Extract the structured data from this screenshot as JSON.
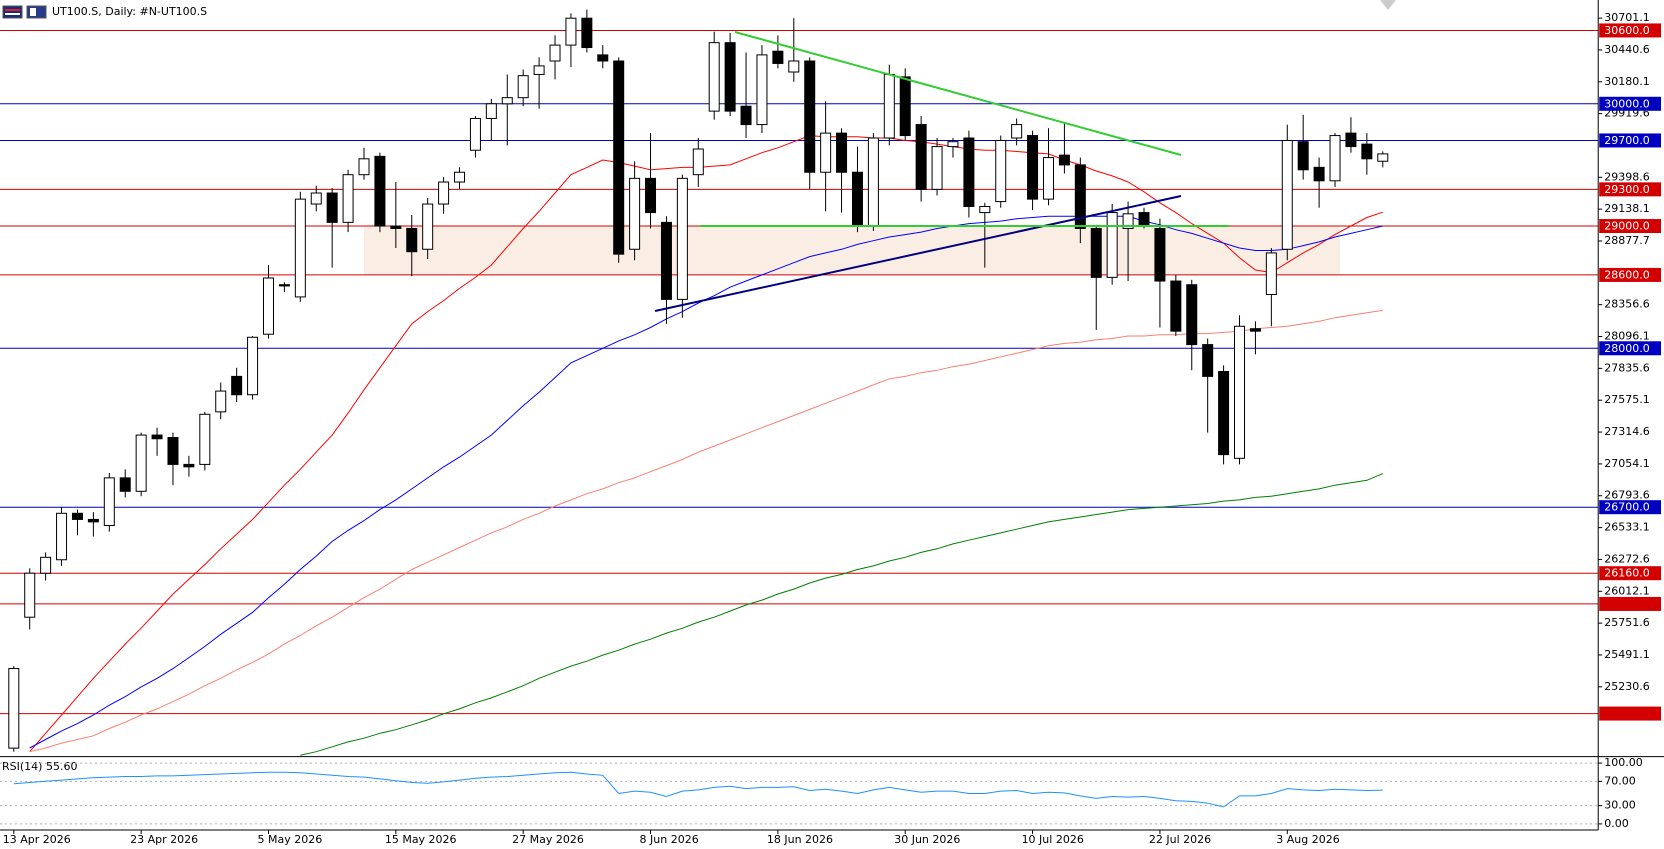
{
  "header": {
    "title": "UT100.S, Daily:  #N-UT100.S"
  },
  "chart_data": [
    {
      "type": "candlestick",
      "categories": [
        "13 Apr 2026",
        null,
        null,
        null,
        null,
        null,
        null,
        null,
        "23 Apr 2026",
        null,
        null,
        null,
        null,
        null,
        null,
        null,
        "5 May 2026",
        null,
        null,
        null,
        null,
        null,
        null,
        null,
        "15 May 2026",
        null,
        null,
        null,
        null,
        null,
        null,
        null,
        "27 May 2026",
        null,
        null,
        null,
        null,
        null,
        null,
        null,
        "8 Jun 2026",
        null,
        null,
        null,
        null,
        null,
        null,
        null,
        "18 Jun 2026",
        null,
        null,
        null,
        null,
        null,
        null,
        null,
        "30 Jun 2026",
        null,
        null,
        null,
        null,
        null,
        null,
        null,
        "10 Jul 2026",
        null,
        null,
        null,
        null,
        null,
        null,
        null,
        "22 Jul 2026",
        null,
        null,
        null,
        null,
        null,
        null,
        null,
        "3 Aug 2026",
        null,
        null,
        null,
        null,
        null,
        null
      ],
      "open": [
        24729,
        25800,
        26160,
        26270,
        26650,
        26600,
        26550,
        26940,
        26830,
        27290,
        27270,
        27050,
        27050,
        27480,
        27770,
        27620,
        28115,
        28520,
        28420,
        29180,
        29270,
        29030,
        29420,
        29570,
        29000,
        28980,
        28810,
        29180,
        29360,
        29620,
        29880,
        30000,
        30050,
        30240,
        30350,
        30480,
        30700,
        30400,
        30350,
        28810,
        29390,
        29030,
        28400,
        29420,
        29940,
        30500,
        29980,
        29830,
        30430,
        30260,
        30350,
        29440,
        29760,
        29440,
        29000,
        29720,
        30220,
        29830,
        29300,
        29650,
        29720,
        29110,
        29200,
        29720,
        29740,
        29220,
        29580,
        29500,
        28980,
        28580,
        28980,
        29110,
        28980,
        28550,
        28520,
        28030,
        27810,
        27100,
        28160,
        28440,
        28810,
        29690,
        29480,
        29370,
        29760,
        29670,
        29530
      ],
      "high": [
        25400,
        26200,
        26330,
        26700,
        26680,
        26660,
        26980,
        27010,
        27310,
        27350,
        27310,
        27120,
        27480,
        27720,
        27840,
        28100,
        28680,
        28540,
        29280,
        29330,
        29310,
        29460,
        29640,
        29600,
        29360,
        29090,
        29230,
        29400,
        29480,
        29900,
        30040,
        30240,
        30280,
        30380,
        30560,
        30740,
        30770,
        30480,
        30380,
        29530,
        29760,
        29080,
        29420,
        29720,
        30590,
        30580,
        30420,
        30480,
        30560,
        30700,
        30380,
        30020,
        29800,
        29650,
        29760,
        30320,
        30290,
        29900,
        29720,
        29720,
        29780,
        29190,
        29740,
        29880,
        29780,
        29800,
        29840,
        29560,
        29010,
        29180,
        29200,
        29150,
        29060,
        28600,
        28560,
        28080,
        27860,
        28270,
        28220,
        28820,
        29830,
        29910,
        29560,
        29760,
        29890,
        29760,
        29610
      ],
      "low": [
        24700,
        25700,
        26100,
        26220,
        26470,
        26460,
        26500,
        26780,
        26790,
        27120,
        26880,
        26950,
        27000,
        27420,
        27560,
        27580,
        28080,
        28460,
        28380,
        29120,
        28660,
        28950,
        29380,
        28950,
        28820,
        28590,
        28730,
        29100,
        29300,
        29560,
        29700,
        29660,
        29980,
        29960,
        30200,
        30300,
        30420,
        30290,
        28700,
        28720,
        28980,
        28200,
        28250,
        29320,
        29870,
        29900,
        29720,
        29760,
        30290,
        30180,
        29300,
        29120,
        29110,
        28950,
        28960,
        29660,
        29700,
        29200,
        29250,
        29560,
        29070,
        28660,
        29150,
        29660,
        29130,
        29170,
        29430,
        28860,
        28150,
        28520,
        28550,
        28980,
        28170,
        28100,
        27820,
        27310,
        27050,
        27050,
        27950,
        28180,
        28720,
        29380,
        29150,
        29320,
        29600,
        29420,
        29480
      ],
      "close": [
        25380,
        26160,
        26290,
        26650,
        26600,
        26580,
        26940,
        26830,
        27290,
        27260,
        27050,
        27030,
        27460,
        27650,
        27620,
        28090,
        28575,
        28510,
        29220,
        29270,
        29030,
        29420,
        29550,
        29000,
        28980,
        28790,
        29180,
        29360,
        29440,
        29880,
        30000,
        30050,
        30230,
        30310,
        30480,
        30700,
        30460,
        30350,
        28770,
        29390,
        29110,
        28400,
        29390,
        29630,
        30500,
        29940,
        29830,
        30400,
        30330,
        30350,
        29440,
        29760,
        29440,
        29000,
        29720,
        30240,
        29740,
        29300,
        29650,
        29690,
        29160,
        29160,
        29700,
        29830,
        29220,
        29560,
        29500,
        28980,
        28580,
        29110,
        29100,
        29010,
        28550,
        28140,
        28030,
        27770,
        27130,
        28180,
        28140,
        28780,
        29700,
        29460,
        29370,
        29740,
        29650,
        29550,
        29590
      ],
      "up_color": "#ffffff",
      "down_color": "#000000",
      "series": [
        {
          "color": "#ff0000",
          "values": [
            null,
            24700,
            24850,
            25000,
            25150,
            25300,
            25440,
            25580,
            25710,
            25850,
            25990,
            26110,
            26230,
            26360,
            26480,
            26600,
            26740,
            26880,
            27010,
            27150,
            27290,
            27470,
            27660,
            27840,
            28020,
            28200,
            28300,
            28390,
            28490,
            28580,
            28680,
            28830,
            28980,
            29120,
            29270,
            29420,
            29480,
            29540,
            29520,
            29490,
            29460,
            29470,
            29480,
            29480,
            29490,
            29500,
            29550,
            29600,
            29640,
            29690,
            29740,
            29730,
            29730,
            29730,
            29720,
            29720,
            29700,
            29690,
            29670,
            29650,
            29630,
            29620,
            29620,
            29610,
            29600,
            29590,
            29540,
            29500,
            29450,
            29410,
            29360,
            29280,
            29190,
            29110,
            29020,
            28940,
            28860,
            28740,
            28640,
            28620,
            28700,
            28780,
            28850,
            28930,
            29000,
            29070,
            29113
          ]
        },
        {
          "color": "#0000ff",
          "values": [
            null,
            24730,
            24800,
            24870,
            24930,
            25000,
            25080,
            25150,
            25230,
            25300,
            25380,
            25470,
            25560,
            25660,
            25750,
            25840,
            25960,
            26070,
            26190,
            26300,
            26420,
            26510,
            26590,
            26680,
            26760,
            26850,
            26940,
            27030,
            27110,
            27200,
            27290,
            27410,
            27530,
            27640,
            27760,
            27880,
            27940,
            28000,
            28060,
            28110,
            28170,
            28240,
            28300,
            28370,
            28430,
            28500,
            28550,
            28600,
            28650,
            28700,
            28750,
            28780,
            28810,
            28850,
            28880,
            28910,
            28930,
            28950,
            28980,
            29000,
            29020,
            29030,
            29040,
            29060,
            29070,
            29080,
            29080,
            29080,
            29080,
            29080,
            29080,
            29040,
            29010,
            28970,
            28940,
            28900,
            28860,
            28820,
            28800,
            28800,
            28810,
            28840,
            28870,
            28910,
            28940,
            28970,
            29000
          ]
        },
        {
          "color": "#fa8072",
          "values": [
            null,
            24700,
            24730,
            24770,
            24800,
            24830,
            24890,
            24940,
            25000,
            25050,
            25110,
            25170,
            25240,
            25300,
            25370,
            25430,
            25500,
            25580,
            25650,
            25730,
            25800,
            25880,
            25960,
            26030,
            26110,
            26190,
            26250,
            26310,
            26370,
            26430,
            26490,
            26540,
            26600,
            26650,
            26710,
            26760,
            26810,
            26850,
            26900,
            26940,
            26990,
            27040,
            27090,
            27150,
            27200,
            27250,
            27300,
            27350,
            27400,
            27450,
            27500,
            27550,
            27600,
            27650,
            27700,
            27750,
            27770,
            27800,
            27820,
            27850,
            27870,
            27900,
            27930,
            27960,
            27990,
            28020,
            28040,
            28050,
            28070,
            28080,
            28100,
            28100,
            28110,
            28110,
            28120,
            28120,
            28130,
            28140,
            28160,
            28170,
            28180,
            28200,
            28220,
            28250,
            28270,
            28290,
            28310
          ]
        },
        {
          "color": "#008000",
          "values": [
            null,
            null,
            null,
            null,
            null,
            null,
            null,
            null,
            null,
            null,
            null,
            null,
            null,
            null,
            null,
            null,
            null,
            null,
            24670,
            24700,
            24740,
            24780,
            24810,
            24850,
            24880,
            24920,
            24960,
            25010,
            25050,
            25100,
            25140,
            25190,
            25240,
            25300,
            25350,
            25400,
            25440,
            25490,
            25530,
            25580,
            25620,
            25670,
            25710,
            25760,
            25800,
            25850,
            25900,
            25940,
            25990,
            26030,
            26080,
            26120,
            26150,
            26190,
            26220,
            26260,
            26290,
            26330,
            26360,
            26400,
            26430,
            26460,
            26490,
            26520,
            26550,
            26580,
            26600,
            26620,
            26640,
            26660,
            26680,
            26690,
            26700,
            26710,
            26720,
            26730,
            26750,
            26760,
            26780,
            26790,
            26810,
            26830,
            26850,
            26880,
            26900,
            26920,
            26975
          ]
        }
      ],
      "ylim": [
        24668,
        30849
      ],
      "yticks": [
        30701.1,
        30440.6,
        30180.1,
        29919.6,
        29398.6,
        29138.1,
        28877.7,
        28356.6,
        28096.1,
        27835.6,
        27575.1,
        27314.6,
        27054.1,
        26793.6,
        26533.1,
        26272.6,
        26012.1,
        25751.6,
        25491.1,
        25230.6
      ],
      "hlines": [
        {
          "value": 30600,
          "label": "30600.0",
          "color": "#d40000"
        },
        {
          "value": 30000,
          "label": "30000.0",
          "color": "#0000c0"
        },
        {
          "value": 29700,
          "label": "29700.0",
          "color": "#0000c0"
        },
        {
          "value": 29300,
          "label": "29300.0",
          "color": "#d40000"
        },
        {
          "value": 29000,
          "label": "29000.0",
          "color": "#d40000"
        },
        {
          "value": 28600,
          "label": "28600.0",
          "color": "#d40000"
        },
        {
          "value": 28000,
          "label": "28000.0",
          "color": "#0000c0"
        },
        {
          "value": 26700,
          "label": "26700.0",
          "color": "#0000c0"
        },
        {
          "value": 26160,
          "label": "26160.0",
          "color": "#d40000"
        },
        {
          "value": 25908.6,
          "color": "#d40000"
        },
        {
          "value": 25011.8,
          "color": "#d40000"
        }
      ]
    },
    {
      "type": "line",
      "title": "RSI(14) 55.60",
      "color": "#1e90ff",
      "values": [
        66,
        68,
        70,
        72,
        74,
        76,
        77,
        78,
        78,
        79,
        79,
        80,
        81,
        82,
        83,
        84,
        85,
        85,
        84,
        82,
        80,
        78,
        77,
        74,
        71,
        68,
        67,
        69,
        72,
        75,
        77,
        78,
        80,
        82,
        84,
        85,
        82,
        80,
        50,
        54,
        52,
        45,
        54,
        56,
        60,
        62,
        58,
        60,
        60,
        61,
        55,
        57,
        54,
        50,
        56,
        60,
        56,
        52,
        54,
        54,
        50,
        50,
        54,
        55,
        50,
        52,
        51,
        46,
        42,
        45,
        44,
        45,
        42,
        38,
        37,
        34,
        28,
        46,
        46,
        50,
        58,
        56,
        55,
        57,
        56,
        55,
        55.6
      ],
      "ylim": [
        -10,
        110
      ],
      "yticks": [
        {
          "value": 100,
          "label": "100.00"
        },
        {
          "value": 70,
          "label": "70.00"
        },
        {
          "value": 30,
          "label": "30.00"
        },
        {
          "value": 0,
          "label": "0.00"
        }
      ]
    }
  ]
}
